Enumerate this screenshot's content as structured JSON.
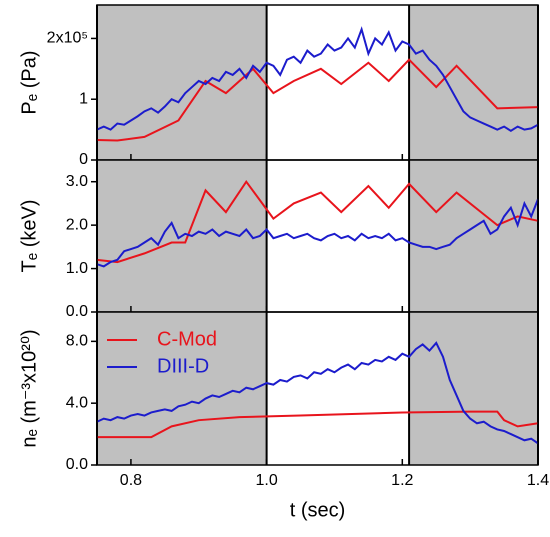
{
  "chart_data": [
    {
      "type": "line",
      "ylabel": "Pₑ (Pa)",
      "xlim": [
        0.75,
        1.4
      ],
      "ylim": [
        0,
        2.55
      ],
      "yticks": [
        0,
        1,
        {
          "value": 2,
          "label": "2x10⁵"
        }
      ],
      "xticks": [
        {
          "value": 0.8,
          "label": "0.8"
        },
        {
          "value": 1,
          "label": "1.0"
        },
        {
          "value": 1.2,
          "label": "1.2"
        },
        {
          "value": 1.4,
          "label": "1.4"
        }
      ],
      "shaded": [
        [
          0.75,
          1.0
        ],
        [
          1.21,
          1.4
        ]
      ],
      "shade_color": "#c0c0c0",
      "series": [
        {
          "color": "#e8141c",
          "x": [
            0.75,
            0.78,
            0.82,
            0.87,
            0.91,
            0.94,
            0.98,
            1.01,
            1.04,
            1.08,
            1.11,
            1.15,
            1.18,
            1.21,
            1.25,
            1.28,
            1.34,
            1.4
          ],
          "values": [
            0.33,
            0.32,
            0.38,
            0.65,
            1.3,
            1.1,
            1.5,
            1.1,
            1.3,
            1.5,
            1.25,
            1.6,
            1.3,
            1.65,
            1.2,
            1.55,
            0.85,
            0.87
          ]
        },
        {
          "color": "#1c1ccc",
          "x": [
            0.75,
            0.76,
            0.77,
            0.78,
            0.79,
            0.8,
            0.81,
            0.82,
            0.83,
            0.84,
            0.85,
            0.86,
            0.87,
            0.88,
            0.89,
            0.9,
            0.91,
            0.92,
            0.93,
            0.94,
            0.95,
            0.96,
            0.97,
            0.98,
            0.99,
            1.0,
            1.01,
            1.02,
            1.03,
            1.04,
            1.05,
            1.06,
            1.07,
            1.08,
            1.09,
            1.1,
            1.11,
            1.12,
            1.13,
            1.14,
            1.15,
            1.16,
            1.17,
            1.18,
            1.19,
            1.2,
            1.21,
            1.22,
            1.23,
            1.24,
            1.25,
            1.26,
            1.27,
            1.28,
            1.29,
            1.3,
            1.31,
            1.32,
            1.33,
            1.34,
            1.35,
            1.36,
            1.37,
            1.38,
            1.39,
            1.4
          ],
          "values": [
            0.5,
            0.55,
            0.5,
            0.6,
            0.58,
            0.65,
            0.72,
            0.8,
            0.85,
            0.78,
            0.88,
            1.0,
            0.95,
            1.1,
            1.2,
            1.3,
            1.25,
            1.35,
            1.3,
            1.45,
            1.4,
            1.5,
            1.35,
            1.55,
            1.45,
            1.6,
            1.55,
            1.4,
            1.65,
            1.7,
            1.6,
            1.8,
            1.7,
            1.75,
            1.9,
            1.8,
            1.85,
            2.0,
            1.85,
            2.15,
            1.75,
            2.0,
            1.9,
            2.1,
            1.8,
            1.95,
            1.9,
            1.75,
            1.8,
            1.65,
            1.55,
            1.4,
            1.2,
            1.0,
            0.8,
            0.7,
            0.65,
            0.6,
            0.55,
            0.5,
            0.55,
            0.48,
            0.55,
            0.5,
            0.52,
            0.58
          ]
        }
      ]
    },
    {
      "type": "line",
      "ylabel": "Tₑ (keV)",
      "xlim": [
        0.75,
        1.4
      ],
      "ylim": [
        0,
        3.5
      ],
      "yticks": [
        {
          "value": 0,
          "label": "0.0"
        },
        {
          "value": 1,
          "label": "1.0"
        },
        {
          "value": 2,
          "label": "2.0"
        },
        {
          "value": 3,
          "label": "3.0"
        }
      ],
      "xticks": [
        {
          "value": 0.8,
          "label": "0.8"
        },
        {
          "value": 1,
          "label": "1.0"
        },
        {
          "value": 1.2,
          "label": "1.2"
        },
        {
          "value": 1.4,
          "label": "1.4"
        }
      ],
      "shaded": [
        [
          0.75,
          1.0
        ],
        [
          1.21,
          1.4
        ]
      ],
      "shade_color": "#c0c0c0",
      "series": [
        {
          "color": "#e8141c",
          "x": [
            0.75,
            0.78,
            0.82,
            0.86,
            0.88,
            0.91,
            0.94,
            0.97,
            1.01,
            1.04,
            1.08,
            1.11,
            1.15,
            1.18,
            1.21,
            1.25,
            1.28,
            1.34,
            1.37,
            1.4
          ],
          "values": [
            1.2,
            1.15,
            1.35,
            1.6,
            1.6,
            2.8,
            2.3,
            3.0,
            2.15,
            2.5,
            2.75,
            2.3,
            2.9,
            2.4,
            2.95,
            2.3,
            2.75,
            2.0,
            2.2,
            2.1
          ]
        },
        {
          "color": "#1c1ccc",
          "x": [
            0.75,
            0.76,
            0.77,
            0.78,
            0.79,
            0.8,
            0.81,
            0.82,
            0.83,
            0.84,
            0.85,
            0.86,
            0.87,
            0.88,
            0.89,
            0.9,
            0.91,
            0.92,
            0.93,
            0.94,
            0.95,
            0.96,
            0.97,
            0.98,
            0.99,
            1.0,
            1.01,
            1.02,
            1.03,
            1.04,
            1.05,
            1.06,
            1.07,
            1.08,
            1.09,
            1.1,
            1.11,
            1.12,
            1.13,
            1.14,
            1.15,
            1.16,
            1.17,
            1.18,
            1.19,
            1.2,
            1.21,
            1.22,
            1.23,
            1.24,
            1.25,
            1.26,
            1.27,
            1.28,
            1.29,
            1.3,
            1.31,
            1.32,
            1.33,
            1.34,
            1.35,
            1.36,
            1.37,
            1.38,
            1.39,
            1.4
          ],
          "values": [
            1.1,
            1.05,
            1.15,
            1.2,
            1.4,
            1.45,
            1.5,
            1.6,
            1.7,
            1.55,
            1.85,
            2.05,
            1.7,
            1.8,
            1.75,
            1.85,
            1.8,
            1.9,
            1.75,
            1.85,
            1.8,
            1.75,
            1.9,
            1.7,
            1.75,
            1.9,
            1.7,
            1.75,
            1.8,
            1.7,
            1.75,
            1.8,
            1.7,
            1.65,
            1.75,
            1.8,
            1.7,
            1.75,
            1.65,
            1.8,
            1.7,
            1.75,
            1.7,
            1.8,
            1.65,
            1.7,
            1.6,
            1.55,
            1.5,
            1.5,
            1.45,
            1.5,
            1.55,
            1.7,
            1.8,
            1.9,
            2.0,
            2.1,
            1.8,
            1.9,
            2.2,
            2.4,
            2.0,
            2.5,
            2.2,
            2.6
          ]
        }
      ]
    },
    {
      "type": "line",
      "ylabel": "nₑ (m⁻³x10²⁰)",
      "xlabel": "t (sec)",
      "xlim": [
        0.75,
        1.4
      ],
      "ylim": [
        0,
        9.9
      ],
      "yticks": [
        {
          "value": 0,
          "label": "0.0"
        },
        {
          "value": 4,
          "label": "4.0"
        },
        {
          "value": 8,
          "label": "8.0"
        }
      ],
      "xticks": [
        {
          "value": 0.8,
          "label": "0.8"
        },
        {
          "value": 1,
          "label": "1.0"
        },
        {
          "value": 1.2,
          "label": "1.2"
        },
        {
          "value": 1.4,
          "label": "1.4"
        }
      ],
      "shaded": [
        [
          0.75,
          1.0
        ],
        [
          1.21,
          1.4
        ]
      ],
      "shade_color": "#c0c0c0",
      "legend": "upper left",
      "series": [
        {
          "name": "C-Mod",
          "color": "#e8141c",
          "x": [
            0.75,
            0.83,
            0.86,
            0.9,
            0.96,
            1.05,
            1.2,
            1.3,
            1.34,
            1.35,
            1.37,
            1.4
          ],
          "values": [
            1.8,
            1.8,
            2.5,
            2.9,
            3.1,
            3.2,
            3.4,
            3.45,
            3.45,
            2.9,
            2.5,
            2.7
          ]
        },
        {
          "name": "DIII-D",
          "color": "#1c1ccc",
          "x": [
            0.75,
            0.76,
            0.77,
            0.78,
            0.79,
            0.8,
            0.81,
            0.82,
            0.83,
            0.84,
            0.85,
            0.86,
            0.87,
            0.88,
            0.89,
            0.9,
            0.91,
            0.92,
            0.93,
            0.94,
            0.95,
            0.96,
            0.97,
            0.98,
            0.99,
            1.0,
            1.01,
            1.02,
            1.03,
            1.04,
            1.05,
            1.06,
            1.07,
            1.08,
            1.09,
            1.1,
            1.11,
            1.12,
            1.13,
            1.14,
            1.15,
            1.16,
            1.17,
            1.18,
            1.19,
            1.2,
            1.21,
            1.22,
            1.23,
            1.24,
            1.25,
            1.26,
            1.27,
            1.28,
            1.29,
            1.3,
            1.31,
            1.32,
            1.33,
            1.34,
            1.35,
            1.36,
            1.37,
            1.38,
            1.39,
            1.4
          ],
          "values": [
            2.8,
            3.0,
            2.9,
            3.1,
            3.0,
            3.2,
            3.3,
            3.2,
            3.4,
            3.5,
            3.6,
            3.5,
            3.8,
            3.9,
            4.1,
            4.0,
            4.3,
            4.5,
            4.4,
            4.6,
            4.8,
            4.7,
            5.0,
            4.9,
            5.1,
            5.3,
            5.2,
            5.5,
            5.4,
            5.7,
            5.8,
            5.6,
            6.0,
            5.9,
            6.2,
            6.0,
            6.3,
            6.5,
            6.2,
            6.6,
            6.5,
            6.8,
            6.7,
            7.0,
            6.8,
            7.2,
            7.0,
            7.5,
            7.8,
            7.4,
            7.9,
            7.0,
            5.5,
            4.5,
            3.5,
            3.0,
            2.7,
            2.8,
            2.5,
            2.3,
            2.2,
            2.0,
            1.8,
            1.6,
            1.7,
            1.4
          ]
        }
      ]
    }
  ]
}
